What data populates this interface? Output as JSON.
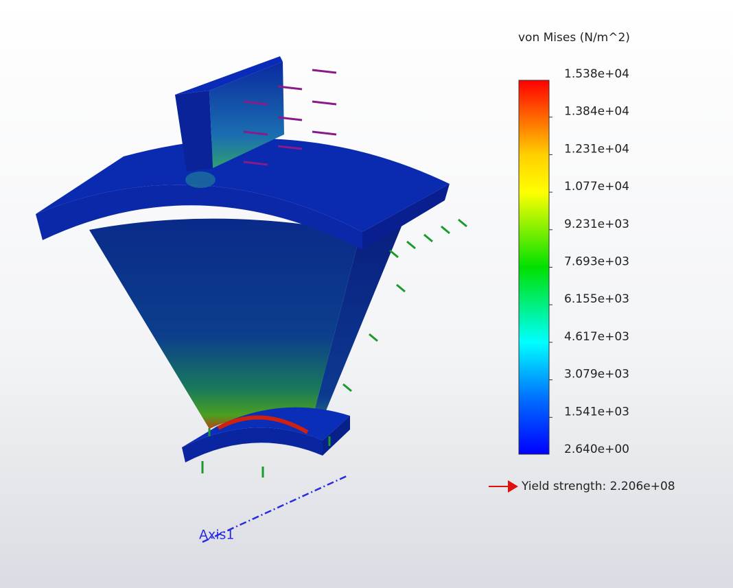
{
  "legend": {
    "title": "von Mises (N/m^2)",
    "labels": [
      "1.538e+04",
      "1.384e+04",
      "1.231e+04",
      "1.077e+04",
      "9.231e+03",
      "7.693e+03",
      "6.155e+03",
      "4.617e+03",
      "3.079e+03",
      "1.541e+03",
      "2.640e+00"
    ]
  },
  "yield_label": "Yield strength: 2.206e+08",
  "axis_label": "Axis1"
}
